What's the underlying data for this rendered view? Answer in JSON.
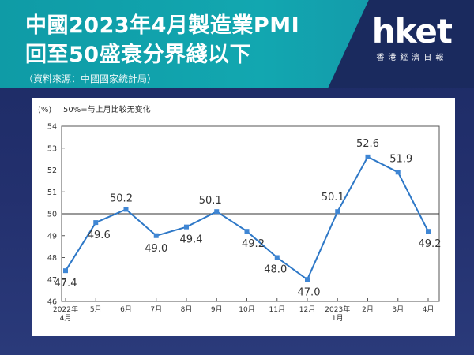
{
  "header": {
    "title_line1": "中國2023年4月製造業PMI",
    "title_line2": "回至50盛衰分界綫以下",
    "source": "（資料來源：中國國家統計局）"
  },
  "logo": {
    "brand": "hket",
    "subtitle": "香港經濟日報"
  },
  "chart_data": {
    "type": "line",
    "unit_label": "(%)",
    "legend_note": "50%=与上月比较无变化",
    "categories": [
      [
        "2022年",
        "4月"
      ],
      [
        "5月"
      ],
      [
        "6月"
      ],
      [
        "7月"
      ],
      [
        "8月"
      ],
      [
        "9月"
      ],
      [
        "10月"
      ],
      [
        "11月"
      ],
      [
        "12月"
      ],
      [
        "2023年",
        "1月"
      ],
      [
        "2月"
      ],
      [
        "3月"
      ],
      [
        "4月"
      ]
    ],
    "values": [
      47.4,
      49.6,
      50.2,
      49.0,
      49.4,
      50.1,
      49.2,
      48.0,
      47.0,
      50.1,
      52.6,
      51.9,
      49.2
    ],
    "value_labels": [
      "47.4",
      "49.6",
      "50.2",
      "49.0",
      "49.4",
      "50.1",
      "49.2",
      "48.0",
      "47.0",
      "50.1",
      "52.6",
      "51.9",
      "49.2"
    ],
    "ylim": [
      46,
      54
    ],
    "yticks": [
      46,
      47,
      48,
      49,
      50,
      51,
      52,
      53,
      54
    ],
    "reference_line": 50,
    "line_color": "#2e78c7",
    "marker_color": "#3f86d4"
  }
}
